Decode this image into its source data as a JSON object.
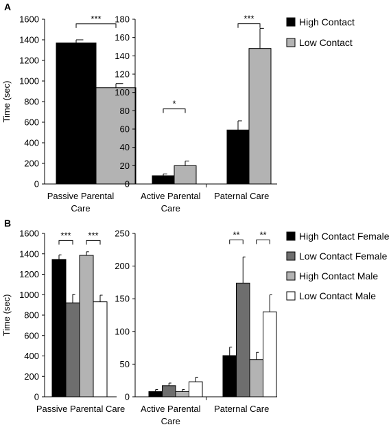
{
  "figure": {
    "panels": [
      {
        "letter": "A"
      },
      {
        "letter": "B"
      }
    ]
  },
  "chart_data": [
    {
      "type": "bar",
      "panel": "A",
      "chart": "left",
      "ylabel": "Time (sec)",
      "ylim": [
        0,
        1600
      ],
      "yticks": [
        0,
        200,
        400,
        600,
        800,
        1000,
        1200,
        1400,
        1600
      ],
      "category_label_lines": [
        [
          "Passive Parental",
          "Care"
        ]
      ],
      "categories": [
        "Passive Parental Care"
      ],
      "series": [
        {
          "name": "High Contact",
          "color": "#000000",
          "values": [
            1370
          ],
          "errors": [
            30
          ]
        },
        {
          "name": "Low Contact",
          "color": "#b3b3b3",
          "values": [
            935
          ],
          "errors": [
            40
          ]
        }
      ],
      "significance": [
        {
          "category": 0,
          "from_series": 0,
          "to_series": 1,
          "y": 1555,
          "label": "***"
        }
      ],
      "legend": "none",
      "grid": false
    },
    {
      "type": "bar",
      "panel": "A",
      "chart": "right",
      "ylim": [
        0,
        180
      ],
      "yticks": [
        0,
        20,
        40,
        60,
        80,
        100,
        120,
        140,
        160,
        180
      ],
      "category_label_lines": [
        [
          "Active Parental",
          "Care"
        ],
        [
          "Paternal Care"
        ]
      ],
      "categories": [
        "Active Parental Care",
        "Paternal Care"
      ],
      "series": [
        {
          "name": "High Contact",
          "color": "#000000",
          "values": [
            9,
            59
          ],
          "errors": [
            2,
            10
          ]
        },
        {
          "name": "Low Contact",
          "color": "#b3b3b3",
          "values": [
            20,
            148
          ],
          "errors": [
            5,
            22
          ]
        }
      ],
      "significance": [
        {
          "category": 0,
          "from_series": 0,
          "to_series": 1,
          "y": 82,
          "label": "*"
        },
        {
          "category": 1,
          "from_series": 0,
          "to_series": 1,
          "y": 175,
          "label": "***"
        }
      ],
      "legend": "right",
      "legend_entries": [
        "High Contact",
        "Low Contact"
      ],
      "grid": false
    },
    {
      "type": "bar",
      "panel": "B",
      "chart": "left",
      "ylabel": "Time (sec)",
      "ylim": [
        0,
        1600
      ],
      "yticks": [
        0,
        200,
        400,
        600,
        800,
        1000,
        1200,
        1400,
        1600
      ],
      "category_label_lines": [
        [
          "Passive Parental Care"
        ]
      ],
      "categories": [
        "Passive Parental Care"
      ],
      "series": [
        {
          "name": "High Contact Female",
          "color": "#000000",
          "values": [
            1345
          ],
          "errors": [
            45
          ]
        },
        {
          "name": "Low Contact Female",
          "color": "#6e6e6e",
          "values": [
            920
          ],
          "errors": [
            85
          ]
        },
        {
          "name": "High Contact Male",
          "color": "#b3b3b3",
          "values": [
            1385
          ],
          "errors": [
            35
          ]
        },
        {
          "name": "Low Contact Male",
          "color": "#ffffff",
          "values": [
            930
          ],
          "errors": [
            65
          ]
        }
      ],
      "significance": [
        {
          "category": 0,
          "from_series": 0,
          "to_series": 1,
          "y": 1530,
          "label": "***"
        },
        {
          "category": 0,
          "from_series": 2,
          "to_series": 3,
          "y": 1530,
          "label": "***"
        }
      ],
      "legend": "none",
      "grid": false
    },
    {
      "type": "bar",
      "panel": "B",
      "chart": "right",
      "ylim": [
        0,
        250
      ],
      "yticks": [
        0,
        50,
        100,
        150,
        200,
        250
      ],
      "category_label_lines": [
        [
          "Active Parental",
          "Care"
        ],
        [
          "Paternal Care"
        ]
      ],
      "categories": [
        "Active Parental Care",
        "Paternal Care"
      ],
      "series": [
        {
          "name": "High Contact Female",
          "color": "#000000",
          "values": [
            8,
            63
          ],
          "errors": [
            3,
            13
          ]
        },
        {
          "name": "Low Contact Female",
          "color": "#6e6e6e",
          "values": [
            17,
            174
          ],
          "errors": [
            4,
            40
          ]
        },
        {
          "name": "High Contact Male",
          "color": "#b3b3b3",
          "values": [
            8,
            57
          ],
          "errors": [
            3,
            11
          ]
        },
        {
          "name": "Low Contact Male",
          "color": "#ffffff",
          "values": [
            23,
            130
          ],
          "errors": [
            7,
            26
          ]
        }
      ],
      "significance": [
        {
          "category": 1,
          "from_series": 0,
          "to_series": 1,
          "y": 240,
          "label": "**"
        },
        {
          "category": 1,
          "from_series": 2,
          "to_series": 3,
          "y": 240,
          "label": "**"
        }
      ],
      "legend": "right",
      "legend_entries": [
        "High Contact Female",
        "Low Contact Female",
        "High Contact Male",
        "Low Contact Male"
      ],
      "grid": false
    }
  ]
}
